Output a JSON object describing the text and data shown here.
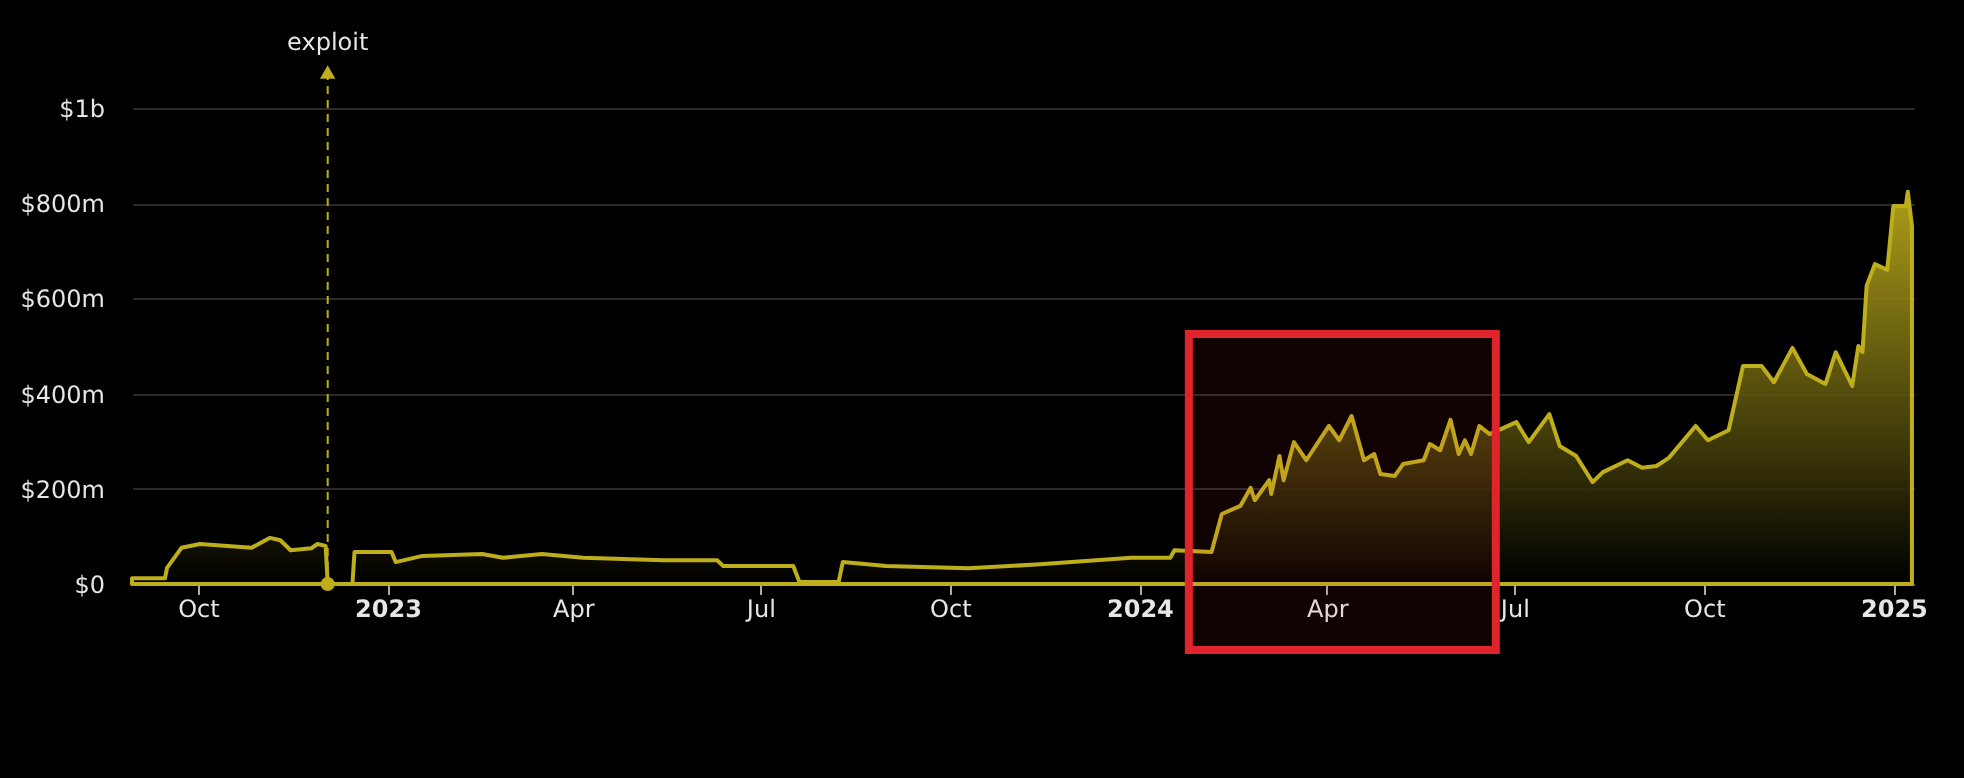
{
  "chart_data": {
    "type": "area",
    "x": [
      "2022-08-30",
      "2022-09-15",
      "2022-09-16",
      "2022-09-23",
      "2022-10-02",
      "2022-10-27",
      "2022-11-05",
      "2022-11-10",
      "2022-11-15",
      "2022-11-25",
      "2022-11-28",
      "2022-12-02",
      "2022-12-03",
      "2022-12-15",
      "2022-12-16",
      "2023-01-03",
      "2023-01-05",
      "2023-01-18",
      "2023-02-16",
      "2023-02-26",
      "2023-03-17",
      "2023-04-06",
      "2023-05-15",
      "2023-06-10",
      "2023-06-13",
      "2023-07-17",
      "2023-07-20",
      "2023-08-08",
      "2023-08-10",
      "2023-08-31",
      "2023-10-10",
      "2023-11-12",
      "2023-12-28",
      "2024-01-16",
      "2024-01-18",
      "2024-02-05",
      "2024-02-10",
      "2024-02-19",
      "2024-02-24",
      "2024-02-26",
      "2024-03-04",
      "2024-03-05",
      "2024-03-09",
      "2024-03-11",
      "2024-03-16",
      "2024-03-22",
      "2024-04-02",
      "2024-04-07",
      "2024-04-13",
      "2024-04-19",
      "2024-04-24",
      "2024-04-27",
      "2024-05-04",
      "2024-05-08",
      "2024-05-18",
      "2024-05-21",
      "2024-05-26",
      "2024-05-31",
      "2024-06-04",
      "2024-06-07",
      "2024-06-10",
      "2024-06-14",
      "2024-06-19",
      "2024-07-02",
      "2024-07-08",
      "2024-07-18",
      "2024-07-23",
      "2024-07-31",
      "2024-08-08",
      "2024-08-13",
      "2024-08-25",
      "2024-09-01",
      "2024-09-08",
      "2024-09-14",
      "2024-09-27",
      "2024-10-03",
      "2024-10-13",
      "2024-10-20",
      "2024-10-29",
      "2024-11-04",
      "2024-11-13",
      "2024-11-20",
      "2024-11-29",
      "2024-12-04",
      "2024-12-12",
      "2024-12-15",
      "2024-12-17",
      "2024-12-19",
      "2024-12-23",
      "2024-12-29",
      "2025-01-01",
      "2025-01-07",
      "2025-01-08",
      "2025-01-10"
    ],
    "series": [
      {
        "color": "#bfae1c",
        "values": [
          12000000.0,
          12000000.0,
          34000000.0,
          76000000.0,
          84000000.0,
          76000000.0,
          97000000.0,
          92000000.0,
          71000000.0,
          75000000.0,
          84000000.0,
          80000000.0,
          0,
          0,
          67000000.0,
          67000000.0,
          46000000.0,
          59000000.0,
          63000000.0,
          55000000.0,
          63000000.0,
          55000000.0,
          50000000.0,
          50000000.0,
          38000000.0,
          38000000.0,
          4000000.0,
          4000000.0,
          46000000.0,
          38000000.0,
          33000000.0,
          41000000.0,
          55000000.0,
          55000000.0,
          71000000.0,
          67000000.0,
          147000000.0,
          164000000.0,
          202000000.0,
          176000000.0,
          218000000.0,
          189000000.0,
          269000000.0,
          218000000.0,
          298000000.0,
          260000000.0,
          332000000.0,
          302000000.0,
          353000000.0,
          260000000.0,
          273000000.0,
          231000000.0,
          227000000.0,
          252000000.0,
          260000000.0,
          294000000.0,
          281000000.0,
          345000000.0,
          273000000.0,
          302000000.0,
          273000000.0,
          332000000.0,
          315000000.0,
          340000000.0,
          298000000.0,
          357000000.0,
          290000000.0,
          269000000.0,
          214000000.0,
          235000000.0,
          260000000.0,
          244000000.0,
          248000000.0,
          265000000.0,
          332000000.0,
          302000000.0,
          323000000.0,
          458000000.0,
          458000000.0,
          424000000.0,
          496000000.0,
          441000000.0,
          420000000.0,
          487000000.0,
          416000000.0,
          500000000.0,
          487000000.0,
          626000000.0,
          672000000.0,
          660000000.0,
          794000000.0,
          794000000.0,
          824000000.0,
          752000000.0
        ]
      }
    ],
    "xlim": [
      "2022-08-30",
      "2025-01-11"
    ],
    "xticks": [
      {
        "value": "2022-10-01",
        "label": "Oct"
      },
      {
        "value": "2023-01-01",
        "label": "2023"
      },
      {
        "value": "2023-04-01",
        "label": "Apr"
      },
      {
        "value": "2023-07-01",
        "label": "Jul"
      },
      {
        "value": "2023-10-01",
        "label": "Oct"
      },
      {
        "value": "2024-01-01",
        "label": "2024"
      },
      {
        "value": "2024-04-01",
        "label": "Apr"
      },
      {
        "value": "2024-07-01",
        "label": "Jul"
      },
      {
        "value": "2024-10-01",
        "label": "Oct"
      },
      {
        "value": "2025-01-01",
        "label": "2025"
      }
    ],
    "ylim": [
      0,
      1000000000.0
    ],
    "yticks": [
      {
        "value": 0,
        "label": "$0"
      },
      {
        "value": 200000000.0,
        "label": "$200m"
      },
      {
        "value": 400000000.0,
        "label": "$400m"
      },
      {
        "value": 600000000.0,
        "label": "$600m"
      },
      {
        "value": 800000000.0,
        "label": "$800m"
      },
      {
        "value": 1000000000.0,
        "label": "$1b"
      }
    ],
    "grid": "y",
    "annotations": [
      {
        "text": "exploit",
        "x": "2022-12-03",
        "y": 0
      }
    ],
    "bands": [
      {
        "axis": "x",
        "from": "2024-01-25",
        "to": "2024-06-22",
        "color": "#e0242b"
      }
    ]
  }
}
